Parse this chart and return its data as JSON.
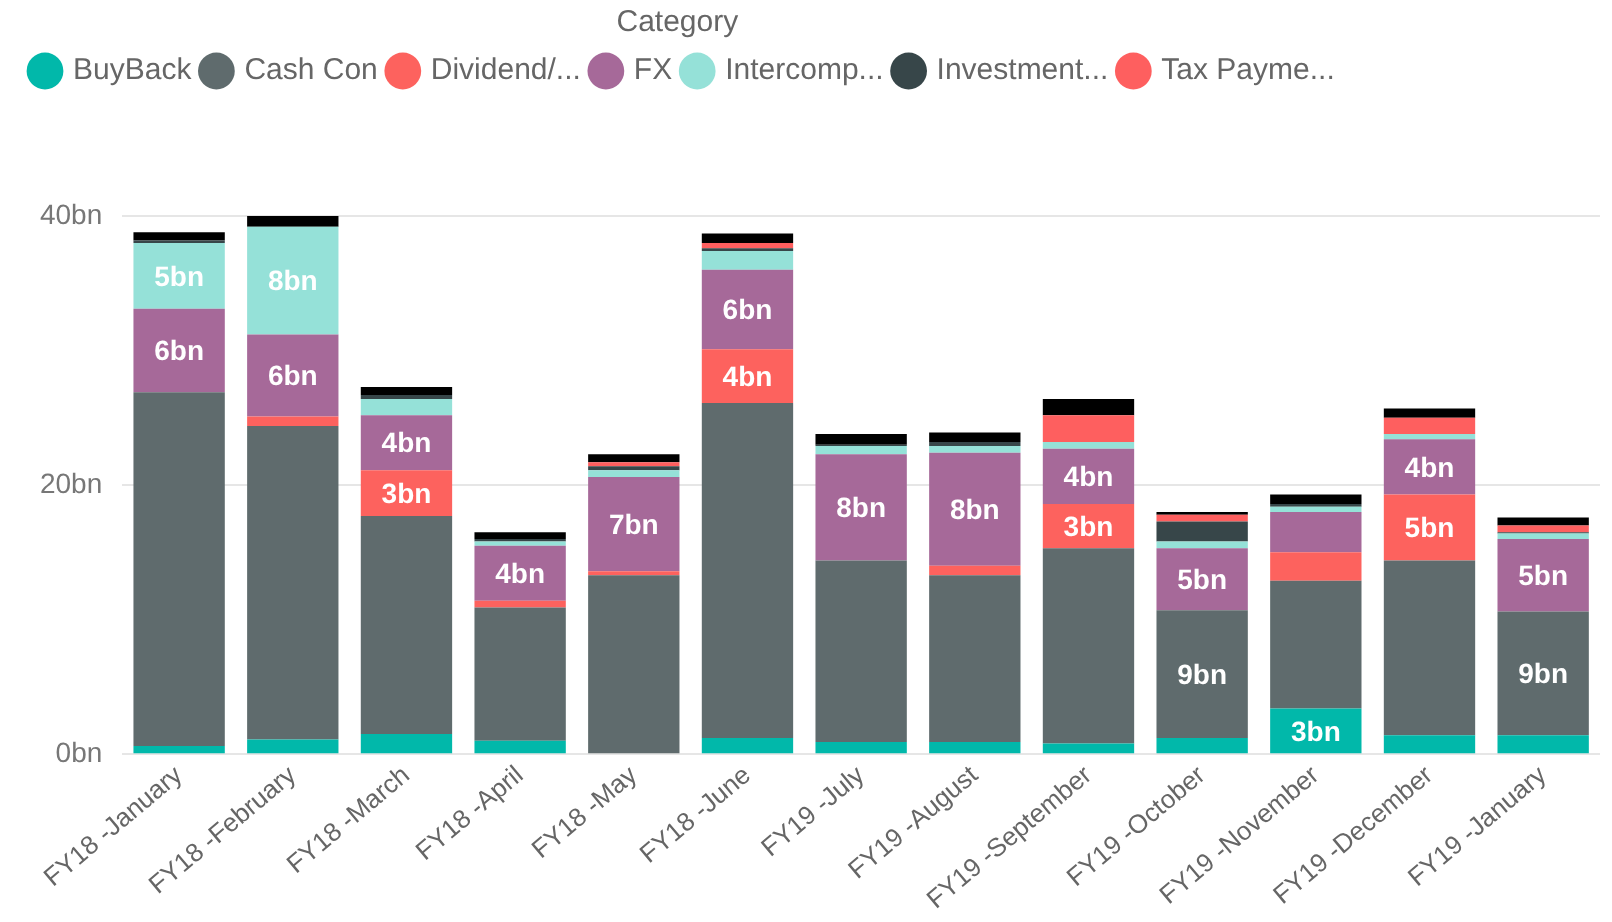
{
  "chart_data": {
    "type": "bar",
    "stacked": true,
    "legend_title": "Category",
    "legend": "top left",
    "grid": "y",
    "data_labels": false,
    "categories": [
      "FY18 -January",
      "FY18 -February",
      "FY18 -March",
      "FY18 -April",
      "FY18 -May",
      "FY18 -June",
      "FY19 -July",
      "FY19 -August",
      "FY19 -September",
      "FY19 -October",
      "FY19 -November",
      "FY19 -December",
      "FY19 -January"
    ],
    "ylim": [
      0,
      40
    ],
    "yticks": [
      {
        "value": 0,
        "label": "0bn"
      },
      {
        "value": 20,
        "label": "20bn"
      },
      {
        "value": 40,
        "label": "40bn"
      }
    ],
    "series": [
      {
        "name": "BuyBack",
        "color": "#01b8aa",
        "values": [
          0.6,
          1.1,
          1.5,
          1.0,
          0,
          1.2,
          0.9,
          0.9,
          0.8,
          1.2,
          3.4,
          1.4,
          1.4
        ],
        "value_labels": [
          null,
          null,
          null,
          null,
          null,
          null,
          null,
          null,
          null,
          null,
          "3bn",
          null,
          null
        ]
      },
      {
        "name": "Cash Con",
        "color": "#5f6b6d",
        "values": [
          26.3,
          23.3,
          16.2,
          9.9,
          13.3,
          24.9,
          13.5,
          12.4,
          14.5,
          9.5,
          9.5,
          13.0,
          9.2
        ],
        "value_labels": [
          null,
          null,
          null,
          null,
          null,
          null,
          null,
          null,
          null,
          "9bn",
          null,
          null,
          "9bn"
        ]
      },
      {
        "name": "Dividend/...",
        "color": "#fd625e",
        "values": [
          0,
          0.7,
          3.4,
          0.5,
          0.3,
          4.0,
          0,
          0.7,
          3.3,
          0,
          2.1,
          4.9,
          0
        ],
        "value_labels": [
          null,
          null,
          "3bn",
          null,
          null,
          "4bn",
          null,
          null,
          "3bn",
          null,
          null,
          "5bn",
          null
        ]
      },
      {
        "name": "FX",
        "color": "#a66999",
        "values": [
          6.2,
          6.1,
          4.1,
          4.1,
          7.0,
          5.9,
          7.9,
          8.4,
          4.1,
          4.6,
          3.0,
          4.1,
          5.4
        ],
        "value_labels": [
          "6bn",
          "6bn",
          "4bn",
          "4bn",
          "7bn",
          "6bn",
          "8bn",
          "8bn",
          "4bn",
          "5bn",
          null,
          "4bn",
          "5bn"
        ]
      },
      {
        "name": "Intercomp...",
        "color": "#95e1d8",
        "values": [
          4.9,
          8.0,
          1.2,
          0.3,
          0.5,
          1.4,
          0.6,
          0.5,
          0.5,
          0.5,
          0.4,
          0.4,
          0.4
        ],
        "value_labels": [
          "5bn",
          "8bn",
          null,
          null,
          null,
          null,
          null,
          null,
          null,
          null,
          null,
          null,
          null
        ]
      },
      {
        "name": "Investment...",
        "color": "#374649",
        "values": [
          0.2,
          0,
          0.3,
          0.2,
          0.3,
          0.2,
          0.1,
          0.3,
          0,
          1.5,
          0.2,
          0,
          0.1
        ]
      },
      {
        "name": "Tax Payme...",
        "color": "#fe5f5f",
        "values": [
          0,
          0,
          0,
          0,
          0.3,
          0.4,
          0,
          0,
          2.0,
          0.5,
          0,
          1.2,
          0.5
        ]
      },
      {
        "color": "#000000",
        "values": [
          0.6,
          0.8,
          0.6,
          0.5,
          0.6,
          0.7,
          0.8,
          0.7,
          1.2,
          0.2,
          0.7,
          0.7,
          0.6
        ]
      }
    ]
  }
}
